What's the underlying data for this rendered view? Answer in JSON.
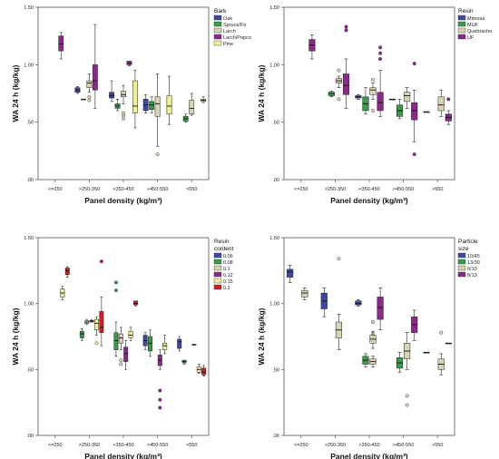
{
  "chart_data": [
    {
      "type": "boxplot",
      "xlabel": "Panel density (kg/m³)",
      "ylabel": "WA 24 h (kg/kg)",
      "ylim": [
        0,
        1.5
      ],
      "yticks": [
        ".00",
        ".50",
        "1.00",
        "1.50"
      ],
      "categories": [
        "<=250",
        ">250-350",
        ">350-450",
        ">450-550",
        ">550"
      ],
      "legend": {
        "title": [
          "Bark"
        ],
        "placement": "top-right"
      },
      "series": [
        {
          "name": "Oak",
          "color": "#3b4a9c"
        },
        {
          "name": "Spruce/Fir",
          "color": "#3a9a4a"
        },
        {
          "name": "Larch",
          "color": "#d8d3b4"
        },
        {
          "name": "Larch/Popco",
          "color": "#8b2a86"
        },
        {
          "name": "Pine",
          "color": "#f0ee96"
        }
      ],
      "boxes": [
        {
          "category": 0,
          "series": 3,
          "min": 1.05,
          "q1": 1.12,
          "median": 1.18,
          "q3": 1.25,
          "max": 1.28,
          "outliers": []
        },
        {
          "category": 1,
          "series": 0,
          "min": 0.75,
          "q1": 0.76,
          "median": 0.78,
          "q3": 0.8,
          "max": 0.81,
          "outliers": []
        },
        {
          "category": 1,
          "series": 1,
          "min": 0.7,
          "q1": 0.7,
          "median": 0.7,
          "q3": 0.7,
          "max": 0.7,
          "outliers": []
        },
        {
          "category": 1,
          "series": 2,
          "min": 0.76,
          "q1": 0.8,
          "median": 0.84,
          "q3": 0.86,
          "max": 0.92,
          "outliers": [
            0.69,
            0.72
          ]
        },
        {
          "category": 1,
          "series": 3,
          "min": 0.62,
          "q1": 0.78,
          "median": 0.86,
          "q3": 1.0,
          "max": 1.35,
          "outliers": []
        },
        {
          "category": 2,
          "series": 0,
          "min": 0.68,
          "q1": 0.71,
          "median": 0.73,
          "q3": 0.76,
          "max": 0.86,
          "outliers": []
        },
        {
          "category": 2,
          "series": 1,
          "min": 0.6,
          "q1": 0.62,
          "median": 0.64,
          "q3": 0.66,
          "max": 0.7,
          "outliers": []
        },
        {
          "category": 2,
          "series": 2,
          "min": 0.66,
          "q1": 0.72,
          "median": 0.74,
          "q3": 0.77,
          "max": 0.82,
          "outliers": [
            0.53,
            0.56,
            0.58
          ]
        },
        {
          "category": 2,
          "series": 3,
          "min": 0.99,
          "q1": 1.0,
          "median": 1.01,
          "q3": 1.03,
          "max": 1.03,
          "outliers": []
        },
        {
          "category": 2,
          "series": 4,
          "min": 0.45,
          "q1": 0.58,
          "median": 0.64,
          "q3": 0.86,
          "max": 0.95,
          "outliers": []
        },
        {
          "category": 3,
          "series": 0,
          "min": 0.58,
          "q1": 0.6,
          "median": 0.65,
          "q3": 0.7,
          "max": 0.74,
          "outliers": []
        },
        {
          "category": 3,
          "series": 1,
          "min": 0.58,
          "q1": 0.61,
          "median": 0.65,
          "q3": 0.68,
          "max": 0.72,
          "outliers": []
        },
        {
          "category": 3,
          "series": 2,
          "min": 0.29,
          "q1": 0.55,
          "median": 0.66,
          "q3": 0.72,
          "max": 0.92,
          "outliers": [
            0.22
          ]
        },
        {
          "category": 3,
          "series": 4,
          "min": 0.48,
          "q1": 0.57,
          "median": 0.64,
          "q3": 0.73,
          "max": 0.9,
          "outliers": []
        },
        {
          "category": 4,
          "series": 1,
          "min": 0.5,
          "q1": 0.51,
          "median": 0.53,
          "q3": 0.55,
          "max": 0.57,
          "outliers": []
        },
        {
          "category": 4,
          "series": 2,
          "min": 0.56,
          "q1": 0.57,
          "median": 0.62,
          "q3": 0.69,
          "max": 0.75,
          "outliers": []
        },
        {
          "category": 4,
          "series": 4,
          "min": 0.67,
          "q1": 0.68,
          "median": 0.69,
          "q3": 0.7,
          "max": 0.72,
          "outliers": []
        }
      ]
    },
    {
      "type": "boxplot",
      "xlabel": "Panel density (kg/m³)",
      "ylabel": "WA 24 h (kg/kg)",
      "ylim": [
        0,
        1.5
      ],
      "yticks": [
        ".00",
        ".50",
        "1.00",
        "1.50"
      ],
      "categories": [
        "<=250",
        ">250-350",
        ">350-450",
        ">450-550",
        ">550"
      ],
      "legend": {
        "title": [
          "Resin"
        ],
        "placement": "top-right"
      },
      "series": [
        {
          "name": "Mimosa",
          "color": "#3b4a9c"
        },
        {
          "name": "MUF",
          "color": "#3a9a4a"
        },
        {
          "name": "Quebracho",
          "color": "#d8d3b4"
        },
        {
          "name": "UF",
          "color": "#8b2a86"
        }
      ],
      "boxes": [
        {
          "category": 0,
          "series": 3,
          "min": 1.05,
          "q1": 1.12,
          "median": 1.17,
          "q3": 1.22,
          "max": 1.26,
          "outliers": []
        },
        {
          "category": 1,
          "series": 1,
          "min": 0.72,
          "q1": 0.73,
          "median": 0.75,
          "q3": 0.76,
          "max": 0.77,
          "outliers": []
        },
        {
          "category": 1,
          "series": 2,
          "min": 0.8,
          "q1": 0.84,
          "median": 0.86,
          "q3": 0.88,
          "max": 0.9,
          "outliers": [
            0.7,
            0.95
          ]
        },
        {
          "category": 1,
          "series": 3,
          "min": 0.62,
          "q1": 0.74,
          "median": 0.82,
          "q3": 0.92,
          "max": 1.05,
          "outliers": [
            1.3,
            1.33
          ]
        },
        {
          "category": 2,
          "series": 0,
          "min": 0.7,
          "q1": 0.71,
          "median": 0.72,
          "q3": 0.73,
          "max": 0.74,
          "outliers": []
        },
        {
          "category": 2,
          "series": 1,
          "min": 0.57,
          "q1": 0.6,
          "median": 0.66,
          "q3": 0.72,
          "max": 0.8,
          "outliers": []
        },
        {
          "category": 2,
          "series": 2,
          "min": 0.7,
          "q1": 0.74,
          "median": 0.78,
          "q3": 0.8,
          "max": 0.84,
          "outliers": [
            0.6,
            0.87
          ]
        },
        {
          "category": 2,
          "series": 3,
          "min": 0.55,
          "q1": 0.6,
          "median": 0.67,
          "q3": 0.76,
          "max": 0.95,
          "outliers": [
            1.05,
            1.1,
            1.15
          ]
        },
        {
          "category": 3,
          "series": 0,
          "min": 0.7,
          "q1": 0.7,
          "median": 0.7,
          "q3": 0.7,
          "max": 0.7,
          "outliers": []
        },
        {
          "category": 3,
          "series": 1,
          "min": 0.53,
          "q1": 0.55,
          "median": 0.6,
          "q3": 0.65,
          "max": 0.7,
          "outliers": []
        },
        {
          "category": 3,
          "series": 2,
          "min": 0.62,
          "q1": 0.68,
          "median": 0.73,
          "q3": 0.76,
          "max": 0.8,
          "outliers": []
        },
        {
          "category": 3,
          "series": 3,
          "min": 0.33,
          "q1": 0.52,
          "median": 0.6,
          "q3": 0.67,
          "max": 0.78,
          "outliers": [
            0.22,
            1.01
          ]
        },
        {
          "category": 4,
          "series": 0,
          "min": 0.59,
          "q1": 0.59,
          "median": 0.59,
          "q3": 0.59,
          "max": 0.59,
          "outliers": []
        },
        {
          "category": 4,
          "series": 2,
          "min": 0.55,
          "q1": 0.6,
          "median": 0.65,
          "q3": 0.72,
          "max": 0.78,
          "outliers": []
        },
        {
          "category": 4,
          "series": 3,
          "min": 0.48,
          "q1": 0.51,
          "median": 0.54,
          "q3": 0.57,
          "max": 0.6,
          "outliers": [
            0.7
          ]
        }
      ]
    },
    {
      "type": "boxplot",
      "xlabel": "Panel density (kg/m³)",
      "ylabel": "WA 24 h (kg/kg)",
      "ylim": [
        0,
        1.5
      ],
      "yticks": [
        ".00",
        ".50",
        "1.00",
        "1.50"
      ],
      "categories": [
        "<=250",
        ">250-350",
        ">350-450",
        ">450-550",
        ">550"
      ],
      "legend": {
        "title": [
          "Resin",
          "content"
        ],
        "placement": "top-right"
      },
      "series": [
        {
          "name": "0.06",
          "color": "#3b4a9c"
        },
        {
          "name": "0.08",
          "color": "#3a9a4a"
        },
        {
          "name": "0.1",
          "color": "#d8d3b4"
        },
        {
          "name": "0.12",
          "color": "#8b2a86"
        },
        {
          "name": "0.15",
          "color": "#f0ee96"
        },
        {
          "name": "0.2",
          "color": "#c8202a"
        }
      ],
      "boxes": [
        {
          "category": 0,
          "series": 4,
          "min": 1.03,
          "q1": 1.05,
          "median": 1.08,
          "q3": 1.11,
          "max": 1.13,
          "outliers": []
        },
        {
          "category": 0,
          "series": 5,
          "min": 1.2,
          "q1": 1.22,
          "median": 1.25,
          "q3": 1.27,
          "max": 1.28,
          "outliers": []
        },
        {
          "category": 1,
          "series": 1,
          "min": 0.72,
          "q1": 0.74,
          "median": 0.77,
          "q3": 0.79,
          "max": 0.81,
          "outliers": []
        },
        {
          "category": 1,
          "series": 2,
          "min": 0.84,
          "q1": 0.85,
          "median": 0.86,
          "q3": 0.87,
          "max": 0.88,
          "outliers": []
        },
        {
          "category": 1,
          "series": 3,
          "min": 0.86,
          "q1": 0.86,
          "median": 0.87,
          "q3": 0.87,
          "max": 0.88,
          "outliers": []
        },
        {
          "category": 1,
          "series": 4,
          "min": 0.76,
          "q1": 0.8,
          "median": 0.85,
          "q3": 0.88,
          "max": 0.9,
          "outliers": [
            0.7
          ]
        },
        {
          "category": 1,
          "series": 5,
          "min": 0.68,
          "q1": 0.78,
          "median": 0.82,
          "q3": 0.94,
          "max": 1.05,
          "outliers": [
            1.32
          ]
        },
        {
          "category": 2,
          "series": 1,
          "min": 0.6,
          "q1": 0.65,
          "median": 0.72,
          "q3": 0.78,
          "max": 0.86,
          "outliers": [
            1.1,
            1.16
          ]
        },
        {
          "category": 2,
          "series": 2,
          "min": 0.65,
          "q1": 0.7,
          "median": 0.74,
          "q3": 0.77,
          "max": 0.82,
          "outliers": [
            0.54,
            0.57
          ]
        },
        {
          "category": 2,
          "series": 3,
          "min": 0.5,
          "q1": 0.56,
          "median": 0.62,
          "q3": 0.67,
          "max": 0.72,
          "outliers": []
        },
        {
          "category": 2,
          "series": 4,
          "min": 0.72,
          "q1": 0.74,
          "median": 0.76,
          "q3": 0.79,
          "max": 0.82,
          "outliers": []
        },
        {
          "category": 2,
          "series": 5,
          "min": 0.98,
          "q1": 0.99,
          "median": 1.0,
          "q3": 1.02,
          "max": 1.02,
          "outliers": []
        },
        {
          "category": 3,
          "series": 0,
          "min": 0.65,
          "q1": 0.68,
          "median": 0.72,
          "q3": 0.76,
          "max": 0.78,
          "outliers": []
        },
        {
          "category": 3,
          "series": 1,
          "min": 0.6,
          "q1": 0.64,
          "median": 0.7,
          "q3": 0.75,
          "max": 0.8,
          "outliers": []
        },
        {
          "category": 3,
          "series": 3,
          "min": 0.5,
          "q1": 0.53,
          "median": 0.57,
          "q3": 0.61,
          "max": 0.65,
          "outliers": [
            0.21,
            0.27,
            0.34
          ]
        },
        {
          "category": 3,
          "series": 4,
          "min": 0.62,
          "q1": 0.65,
          "median": 0.68,
          "q3": 0.7,
          "max": 0.76,
          "outliers": []
        },
        {
          "category": 4,
          "series": 0,
          "min": 0.64,
          "q1": 0.66,
          "median": 0.71,
          "q3": 0.73,
          "max": 0.75,
          "outliers": []
        },
        {
          "category": 4,
          "series": 1,
          "min": 0.54,
          "q1": 0.55,
          "median": 0.56,
          "q3": 0.57,
          "max": 0.57,
          "outliers": []
        },
        {
          "category": 4,
          "series": 3,
          "min": 0.69,
          "q1": 0.69,
          "median": 0.69,
          "q3": 0.69,
          "max": 0.69,
          "outliers": []
        },
        {
          "category": 4,
          "series": 4,
          "min": 0.47,
          "q1": 0.48,
          "median": 0.5,
          "q3": 0.52,
          "max": 0.54,
          "outliers": []
        },
        {
          "category": 4,
          "series": 5,
          "min": 0.45,
          "q1": 0.46,
          "median": 0.48,
          "q3": 0.51,
          "max": 0.53,
          "outliers": []
        }
      ]
    },
    {
      "type": "boxplot",
      "xlabel": "Panel density (kg/m³)",
      "ylabel": "WA 24 h (kg/kg)",
      "ylim": [
        0,
        1.5
      ],
      "yticks": [
        ".00",
        ".50",
        "1.00",
        "1.50"
      ],
      "categories": [
        "<=250",
        ">250-350",
        ">350-450",
        ">450-550",
        ">550"
      ],
      "legend": {
        "title": [
          "Particle",
          "size"
        ],
        "placement": "top-right"
      },
      "series": [
        {
          "name": "10/45",
          "color": "#3b4a9c"
        },
        {
          "name": "13/30",
          "color": "#3a9a4a"
        },
        {
          "name": "6/10",
          "color": "#d8d3b4"
        },
        {
          "name": "8/13",
          "color": "#8b2a86"
        }
      ],
      "boxes": [
        {
          "category": 0,
          "series": 0,
          "min": 1.16,
          "q1": 1.2,
          "median": 1.24,
          "q3": 1.26,
          "max": 1.29,
          "outliers": []
        },
        {
          "category": 0,
          "series": 2,
          "min": 1.03,
          "q1": 1.05,
          "median": 1.08,
          "q3": 1.1,
          "max": 1.12,
          "outliers": []
        },
        {
          "category": 1,
          "series": 0,
          "min": 0.9,
          "q1": 0.96,
          "median": 1.02,
          "q3": 1.08,
          "max": 1.12,
          "outliers": []
        },
        {
          "category": 1,
          "series": 2,
          "min": 0.65,
          "q1": 0.74,
          "median": 0.8,
          "q3": 0.86,
          "max": 0.92,
          "outliers": [
            1.34
          ]
        },
        {
          "category": 2,
          "series": 0,
          "min": 0.98,
          "q1": 0.99,
          "median": 1.0,
          "q3": 1.02,
          "max": 1.03,
          "outliers": []
        },
        {
          "category": 2,
          "series": 1,
          "min": 0.52,
          "q1": 0.54,
          "median": 0.57,
          "q3": 0.6,
          "max": 0.62,
          "outliers": []
        },
        {
          "category": 2,
          "series": 2,
          "min": 0.52,
          "q1": 0.54,
          "median": 0.56,
          "q3": 0.58,
          "max": 0.6,
          "outliers": [
            0.77,
            0.86
          ]
        },
        {
          "category": 2,
          "series": 2,
          "min": 0.66,
          "q1": 0.7,
          "median": 0.73,
          "q3": 0.76,
          "max": 0.79,
          "outliers": []
        },
        {
          "category": 2,
          "series": 3,
          "min": 0.8,
          "q1": 0.88,
          "median": 0.97,
          "q3": 1.05,
          "max": 1.12,
          "outliers": []
        },
        {
          "category": 3,
          "series": 1,
          "min": 0.48,
          "q1": 0.51,
          "median": 0.55,
          "q3": 0.59,
          "max": 0.63,
          "outliers": []
        },
        {
          "category": 3,
          "series": 2,
          "min": 0.5,
          "q1": 0.58,
          "median": 0.64,
          "q3": 0.7,
          "max": 0.78,
          "outliers": [
            0.23,
            0.3
          ]
        },
        {
          "category": 3,
          "series": 3,
          "min": 0.72,
          "q1": 0.78,
          "median": 0.84,
          "q3": 0.9,
          "max": 0.95,
          "outliers": []
        },
        {
          "category": 4,
          "series": 0,
          "min": 0.63,
          "q1": 0.63,
          "median": 0.63,
          "q3": 0.63,
          "max": 0.63,
          "outliers": []
        },
        {
          "category": 4,
          "series": 2,
          "min": 0.46,
          "q1": 0.5,
          "median": 0.54,
          "q3": 0.58,
          "max": 0.62,
          "outliers": [
            0.78
          ]
        },
        {
          "category": 4,
          "series": 3,
          "min": 0.7,
          "q1": 0.7,
          "median": 0.7,
          "q3": 0.7,
          "max": 0.7,
          "outliers": []
        }
      ]
    }
  ]
}
